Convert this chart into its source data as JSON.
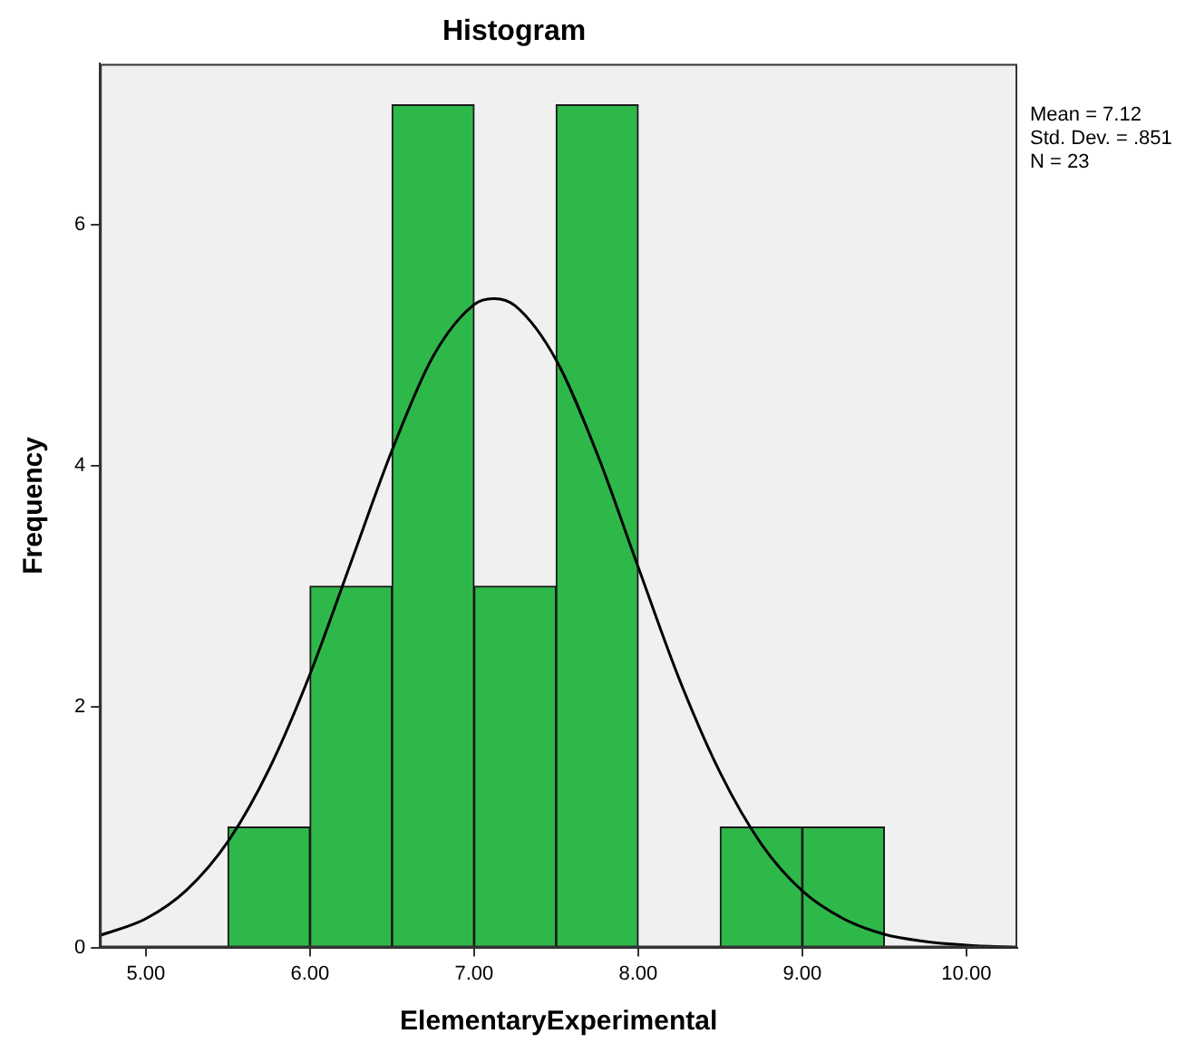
{
  "chart_data": {
    "type": "histogram",
    "title": "Histogram",
    "xlabel": "ElementaryExperimental",
    "ylabel": "Frequency",
    "bins": [
      5.5,
      6,
      6.5,
      7,
      7.5,
      8,
      8.5,
      9,
      9.5
    ],
    "values": [
      1,
      3,
      7,
      3,
      7,
      0,
      1,
      1
    ],
    "color": "#2eb84a",
    "xlim": [
      4.72,
      10.31
    ],
    "ylim": [
      0,
      7.34
    ],
    "xticks": [
      {
        "value": 5,
        "label": "5.00"
      },
      {
        "value": 6,
        "label": "6.00"
      },
      {
        "value": 7,
        "label": "7.00"
      },
      {
        "value": 8,
        "label": "8.00"
      },
      {
        "value": 9,
        "label": "9.00"
      },
      {
        "value": 10,
        "label": "10.00"
      }
    ],
    "yticks": [
      0,
      2,
      4,
      6
    ],
    "grid": false,
    "legend": false,
    "marker": "none",
    "series": [
      {
        "type": "line",
        "color": "#000000",
        "x": [
          4.72,
          5,
          5.25,
          5.5,
          5.75,
          6,
          6.25,
          6.5,
          6.75,
          7,
          7.12,
          7.25,
          7.5,
          7.75,
          8,
          8.25,
          8.5,
          8.75,
          9,
          9.25,
          9.5,
          9.75,
          10,
          10.31
        ],
        "values": [
          0.1,
          0.24,
          0.48,
          0.88,
          1.48,
          2.27,
          3.2,
          4.13,
          4.91,
          5.34,
          5.39,
          5.33,
          4.88,
          4.1,
          3.16,
          2.23,
          1.45,
          0.86,
          0.47,
          0.24,
          0.11,
          0.05,
          0.02,
          0
        ]
      }
    ],
    "annotations": [
      "Mean = 7.12",
      "Std. Dev. = .851",
      "N = 23"
    ]
  }
}
